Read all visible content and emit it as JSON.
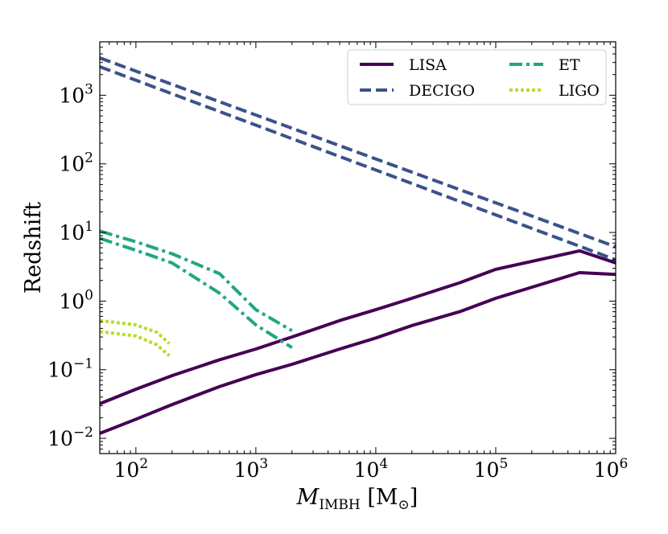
{
  "chart_data": {
    "type": "line",
    "xscale": "log",
    "yscale": "log",
    "xlim": [
      50,
      1000000
    ],
    "ylim": [
      0.006,
      6000
    ],
    "xlabel": {
      "main": "M",
      "sub": "IMBH",
      "unit": " [M",
      "unit_sub": "⊙",
      "unit_close": "]"
    },
    "ylabel": "Redshift",
    "x_ticks": [
      {
        "base": "10",
        "exp": "2",
        "value": 100
      },
      {
        "base": "10",
        "exp": "3",
        "value": 1000
      },
      {
        "base": "10",
        "exp": "4",
        "value": 10000
      },
      {
        "base": "10",
        "exp": "5",
        "value": 100000
      },
      {
        "base": "10",
        "exp": "6",
        "value": 1000000
      }
    ],
    "y_ticks": [
      {
        "base": "10",
        "exp": "−2",
        "value": 0.01
      },
      {
        "base": "10",
        "exp": "−1",
        "value": 0.1
      },
      {
        "base": "10",
        "exp": "0",
        "value": 1
      },
      {
        "base": "10",
        "exp": "1",
        "value": 10
      },
      {
        "base": "10",
        "exp": "2",
        "value": 100
      },
      {
        "base": "10",
        "exp": "3",
        "value": 1000
      }
    ],
    "legend": {
      "placement": "top-right",
      "columns": 2
    },
    "series": [
      {
        "name": "LISA",
        "legend": true,
        "color": "#440154",
        "dash": "solid",
        "x": [
          50,
          100,
          200,
          500,
          1000,
          2000,
          5000,
          10000,
          20000,
          50000,
          100000,
          500000,
          1000000
        ],
        "y": [
          0.032,
          0.052,
          0.082,
          0.14,
          0.2,
          0.3,
          0.52,
          0.75,
          1.1,
          1.85,
          2.9,
          5.4,
          3.6
        ]
      },
      {
        "name": "LISA",
        "legend": false,
        "color": "#440154",
        "dash": "solid",
        "x": [
          50,
          100,
          200,
          500,
          1000,
          2000,
          5000,
          10000,
          20000,
          50000,
          100000,
          500000,
          1000000
        ],
        "y": [
          0.0118,
          0.019,
          0.031,
          0.057,
          0.085,
          0.12,
          0.2,
          0.29,
          0.44,
          0.7,
          1.1,
          2.6,
          2.45
        ]
      },
      {
        "name": "DECIGO",
        "legend": true,
        "color": "#3b528b",
        "dash": "dashed",
        "x": [
          50,
          1000000
        ],
        "y": [
          3500,
          6.2
        ]
      },
      {
        "name": "DECIGO",
        "legend": false,
        "color": "#3b528b",
        "dash": "dashed",
        "x": [
          50,
          1000000
        ],
        "y": [
          2600,
          4.0
        ]
      },
      {
        "name": "ET",
        "legend": true,
        "color": "#21a685",
        "dash": "dashdot",
        "x": [
          50,
          100,
          200,
          500,
          1000,
          2000
        ],
        "y": [
          10.5,
          7.3,
          4.9,
          2.5,
          0.75,
          0.37
        ]
      },
      {
        "name": "ET",
        "legend": false,
        "color": "#21a685",
        "dash": "dashdot",
        "x": [
          50,
          100,
          200,
          500,
          1000,
          2000
        ],
        "y": [
          8.2,
          5.5,
          3.6,
          1.3,
          0.45,
          0.21
        ]
      },
      {
        "name": "LIGO",
        "legend": true,
        "color": "#b5de2b",
        "dash": "dotted",
        "x": [
          50,
          100,
          150,
          190
        ],
        "y": [
          0.52,
          0.45,
          0.35,
          0.24
        ]
      },
      {
        "name": "LIGO",
        "legend": false,
        "color": "#b5de2b",
        "dash": "dotted",
        "x": [
          50,
          100,
          150,
          190
        ],
        "y": [
          0.36,
          0.31,
          0.23,
          0.16
        ]
      }
    ]
  }
}
